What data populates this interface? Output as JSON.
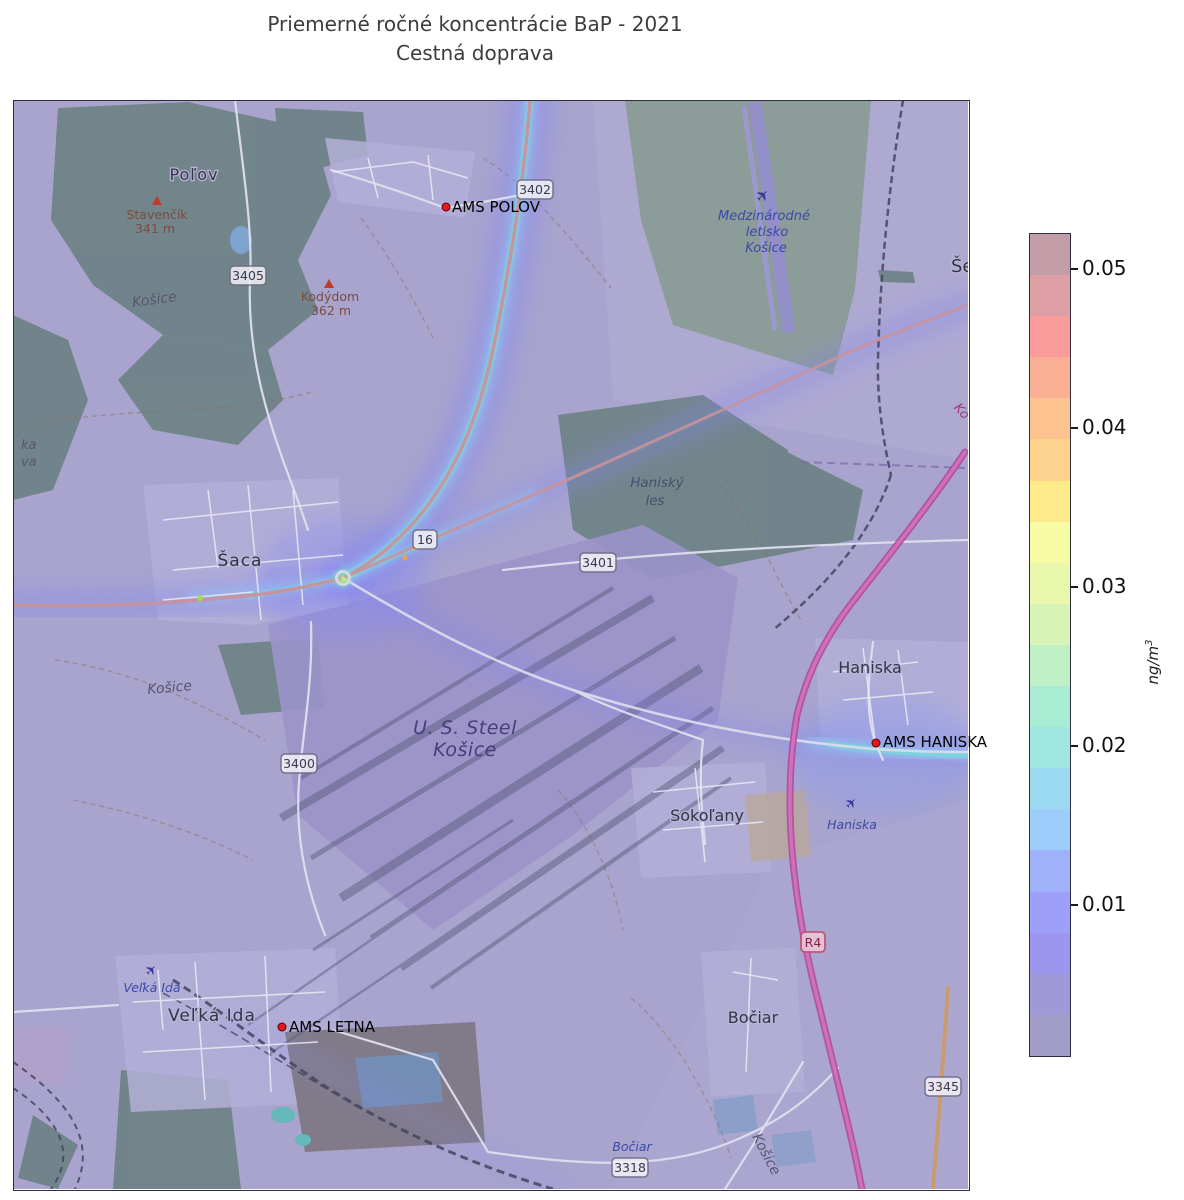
{
  "title": {
    "line1": "Priemerné ročné koncentrácie BaP - 2021",
    "line2": "Cestná doprava"
  },
  "colorbar": {
    "unit_base": "ng/m",
    "unit_exp": "3",
    "ticks": [
      "0.05",
      "0.04",
      "0.03",
      "0.02",
      "0.01"
    ],
    "band_colors_top_to_bottom": [
      "#c39da8",
      "#dd9ea4",
      "#f99c9b",
      "#fbb096",
      "#fcc290",
      "#fdd38d",
      "#fdea8b",
      "#f7fba4",
      "#e9f8ac",
      "#d7f3b6",
      "#beefc5",
      "#aaebd3",
      "#9fe6e3",
      "#9cdaf1",
      "#9dcefb",
      "#9fb1fa",
      "#9e9ff8",
      "#9d96ee",
      "#a099d7",
      "#a29cc9"
    ]
  },
  "map": {
    "stations": [
      {
        "label": "AMS POLOV"
      },
      {
        "label": "AMS HANISKA"
      },
      {
        "label": "AMS LETNA"
      }
    ],
    "towns": [
      {
        "name": "Poľov"
      },
      {
        "name": "Šaca"
      },
      {
        "name": "Haniska"
      },
      {
        "name": "Sokoľany"
      },
      {
        "name": "Veľká Ida"
      },
      {
        "name": "Bočiar"
      },
      {
        "name": "Še"
      }
    ],
    "peaks": [
      {
        "name": "Stavenčík",
        "elevation": "341 m"
      },
      {
        "name": "Kodýdom",
        "elevation": "362 m"
      }
    ],
    "airport": {
      "line1": "Medzinárodné",
      "line2": "letisko",
      "line3": "Košice"
    },
    "airfields": [
      {
        "name": "Veľká Ida"
      },
      {
        "name": "Haniska"
      }
    ],
    "rail_halt": {
      "name": "Bočiar"
    },
    "industrial": {
      "line1": "U. S. Steel",
      "line2": "Košice"
    },
    "forest_label": {
      "line1": "Haniský",
      "line2": "les"
    },
    "region_labels": [
      {
        "name": "Košice"
      },
      {
        "name": "Košice"
      },
      {
        "name": "Košice"
      },
      {
        "name": "Ko"
      },
      {
        "name": "ka"
      },
      {
        "name": "va"
      }
    ],
    "road_shields": [
      {
        "ref": "3402"
      },
      {
        "ref": "3405"
      },
      {
        "ref": "16"
      },
      {
        "ref": "3401"
      },
      {
        "ref": "3400"
      },
      {
        "ref": "R4"
      },
      {
        "ref": "3345"
      },
      {
        "ref": "3318"
      }
    ],
    "colors": {
      "station_marker": "#e31a1c",
      "motorway": "#d473be",
      "trunk_road": "#c6929f",
      "heat_core": "#70e6d6",
      "heat_halo": "#8585f2",
      "forest": "#6e8286",
      "base": "#a8a4ce"
    }
  }
}
